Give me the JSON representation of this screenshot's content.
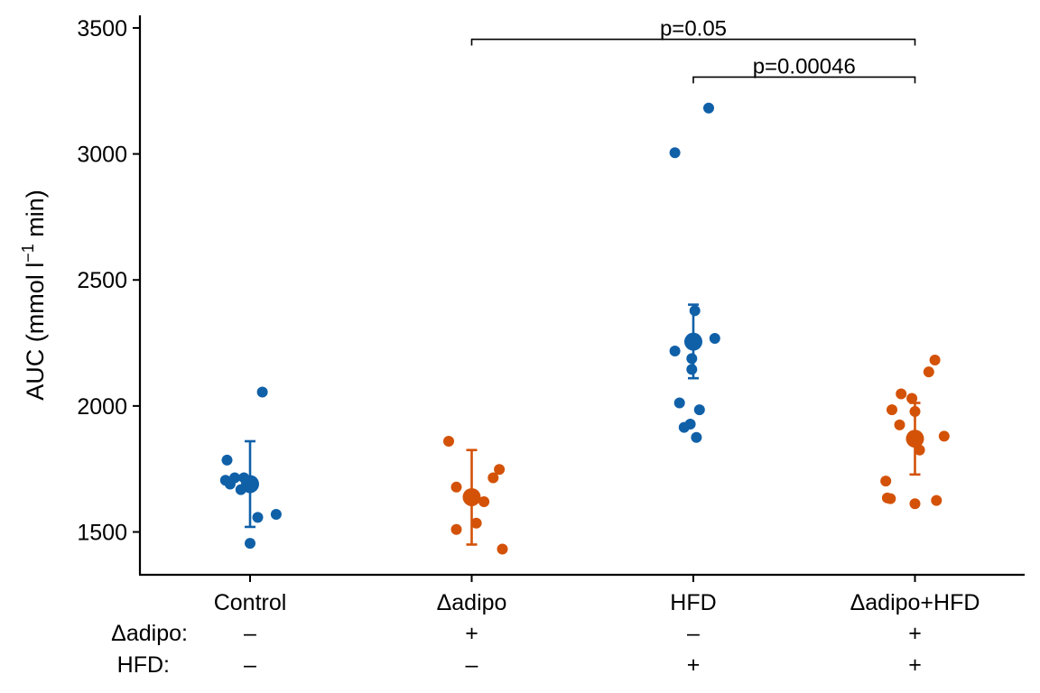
{
  "chart_data": {
    "type": "scatter",
    "title": "",
    "ylabel": {
      "base": "AUC (mmol l",
      "sup": "−1",
      "tail": " min)"
    },
    "xlabel": "",
    "ylim": [
      1330,
      3550
    ],
    "yticks": [
      1500,
      2000,
      2500,
      3000,
      3500
    ],
    "grid": false,
    "legend": "none",
    "colors": {
      "blue": "#1060a8",
      "orange": "#d35208"
    },
    "categories": [
      "Control",
      "Δadipo",
      "HFD",
      "Δadipo+HFD"
    ],
    "genotype_rows": [
      {
        "label": "Δadipo:",
        "values": [
          "–",
          "+",
          "–",
          "+"
        ]
      },
      {
        "label": "HFD:",
        "values": [
          "–",
          "–",
          "+",
          "+"
        ]
      }
    ],
    "groups": [
      {
        "name": "Control",
        "color": "blue",
        "mean": 1690,
        "err_low": 1520,
        "err_high": 1860,
        "points": [
          {
            "x": -0.15,
            "y": 1785
          },
          {
            "x": -0.16,
            "y": 1705
          },
          {
            "x": -0.13,
            "y": 1690
          },
          {
            "x": -0.1,
            "y": 1715
          },
          {
            "x": -0.06,
            "y": 1668
          },
          {
            "x": -0.04,
            "y": 1715
          },
          {
            "x": 0.08,
            "y": 2055
          },
          {
            "x": 0.05,
            "y": 1558
          },
          {
            "x": 0.17,
            "y": 1570
          },
          {
            "x": 0.0,
            "y": 1455
          }
        ]
      },
      {
        "name": "Δadipo",
        "color": "orange",
        "mean": 1638,
        "err_low": 1450,
        "err_high": 1825,
        "points": [
          {
            "x": -0.15,
            "y": 1860
          },
          {
            "x": -0.1,
            "y": 1678
          },
          {
            "x": -0.1,
            "y": 1510
          },
          {
            "x": 0.03,
            "y": 1535
          },
          {
            "x": 0.08,
            "y": 1620
          },
          {
            "x": 0.14,
            "y": 1715
          },
          {
            "x": 0.18,
            "y": 1748
          },
          {
            "x": 0.2,
            "y": 1432
          }
        ]
      },
      {
        "name": "HFD",
        "color": "blue",
        "mean": 2255,
        "err_low": 2110,
        "err_high": 2402,
        "points": [
          {
            "x": -0.12,
            "y": 3005
          },
          {
            "x": 0.1,
            "y": 3182
          },
          {
            "x": 0.01,
            "y": 2378
          },
          {
            "x": 0.14,
            "y": 2268
          },
          {
            "x": -0.12,
            "y": 2218
          },
          {
            "x": -0.01,
            "y": 2188
          },
          {
            "x": -0.01,
            "y": 2145
          },
          {
            "x": -0.09,
            "y": 2012
          },
          {
            "x": 0.04,
            "y": 1985
          },
          {
            "x": -0.02,
            "y": 1928
          },
          {
            "x": -0.06,
            "y": 1915
          },
          {
            "x": 0.02,
            "y": 1875
          },
          {
            "x": -0.01,
            "y": 2262
          }
        ]
      },
      {
        "name": "Δadipo+HFD",
        "color": "orange",
        "mean": 1870,
        "err_low": 1728,
        "err_high": 2012,
        "points": [
          {
            "x": -0.09,
            "y": 2048
          },
          {
            "x": -0.02,
            "y": 2030
          },
          {
            "x": -0.15,
            "y": 1985
          },
          {
            "x": 0.0,
            "y": 1978
          },
          {
            "x": -0.1,
            "y": 1925
          },
          {
            "x": 0.09,
            "y": 2135
          },
          {
            "x": 0.13,
            "y": 2182
          },
          {
            "x": 0.19,
            "y": 1880
          },
          {
            "x": 0.03,
            "y": 1825
          },
          {
            "x": -0.19,
            "y": 1702
          },
          {
            "x": -0.18,
            "y": 1635
          },
          {
            "x": -0.16,
            "y": 1632
          },
          {
            "x": 0.0,
            "y": 1612
          },
          {
            "x": 0.14,
            "y": 1625
          }
        ]
      }
    ],
    "comparisons": [
      {
        "from": "Δadipo",
        "to": "Δadipo+HFD",
        "y": 3455,
        "label": "p=0.05"
      },
      {
        "from": "HFD",
        "to": "Δadipo+HFD",
        "y": 3305,
        "label": "p=0.00046"
      }
    ]
  }
}
